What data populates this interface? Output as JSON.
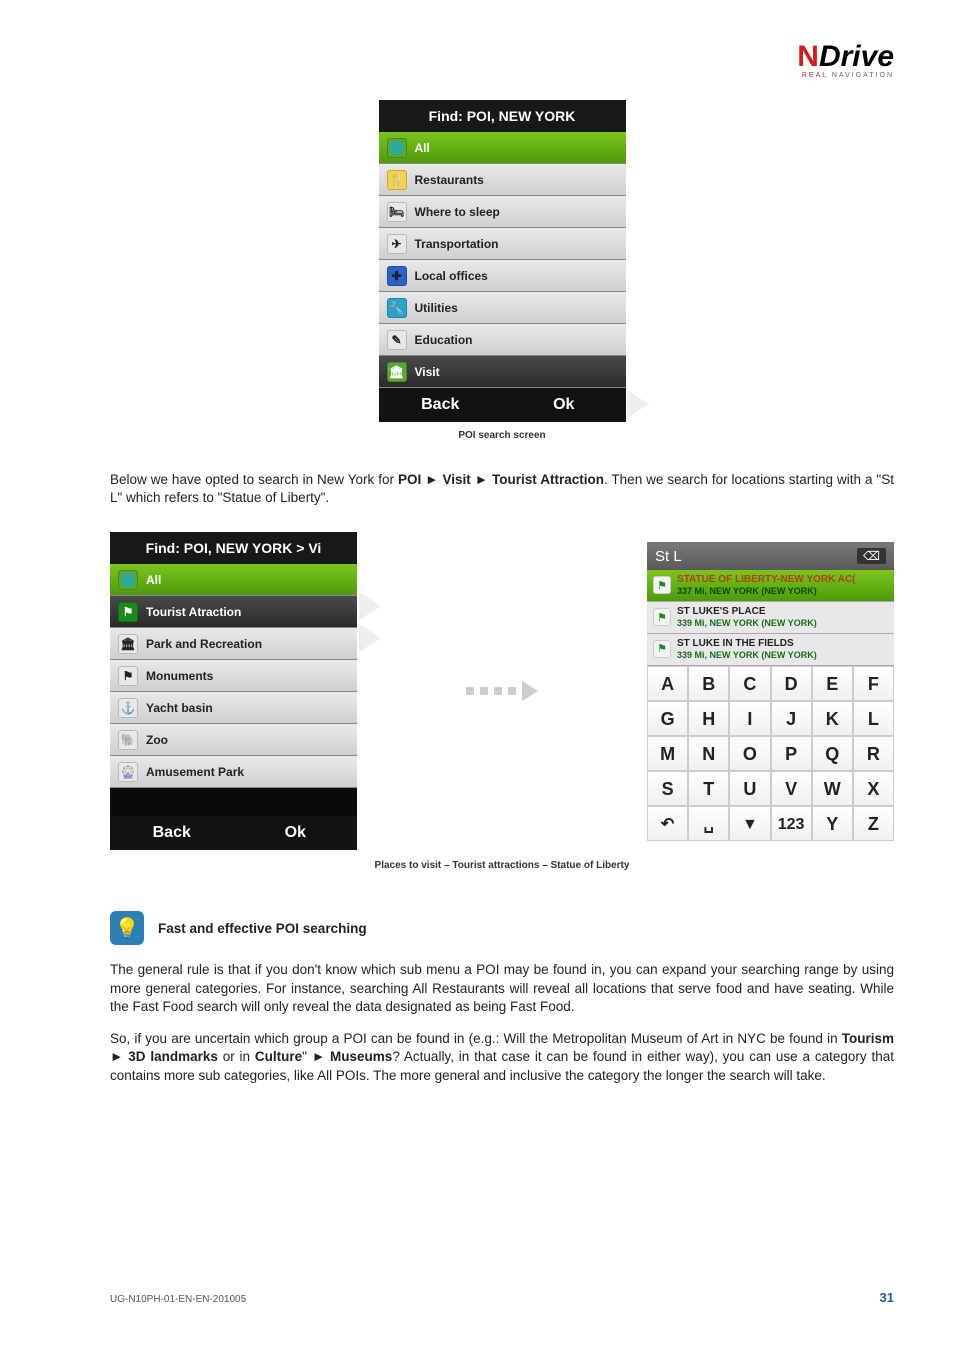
{
  "logo": {
    "part1": "N",
    "part2": "Drive",
    "sub1": "REAL",
    "sub2": "NAVIGATION"
  },
  "screen1": {
    "title": "Find: POI, NEW YORK",
    "items": [
      {
        "label": "All",
        "selected": true,
        "icon_bg": "#5aa832",
        "icon_glyph": "🌐"
      },
      {
        "label": "Restaurants",
        "icon_bg": "#f5d24a",
        "icon_glyph": "🍴"
      },
      {
        "label": "Where to sleep",
        "icon_bg": "#e8e8e8",
        "icon_glyph": "🛏"
      },
      {
        "label": "Transportation",
        "icon_bg": "#e8e8e8",
        "icon_glyph": "✈"
      },
      {
        "label": "Local offices",
        "icon_bg": "#2a62c9",
        "icon_glyph": "✚"
      },
      {
        "label": "Utilities",
        "icon_bg": "#2aa5c9",
        "icon_glyph": "🔧"
      },
      {
        "label": "Education",
        "icon_bg": "#e8e8e8",
        "icon_glyph": "✎"
      },
      {
        "label": "Visit",
        "dark": true,
        "icon_bg": "#5aa832",
        "icon_glyph": "🏛"
      }
    ],
    "back": "Back",
    "ok": "Ok",
    "caption": "POI search screen"
  },
  "para1": {
    "pre": "Below we have opted to search in New York for ",
    "b1": "POI ► Visit ► Tourist Attraction",
    "post": ". Then we search for locations starting with a \"St L\" which refers to \"Statue of Liberty\"."
  },
  "screen2": {
    "title": "Find: POI, NEW YORK > Vi",
    "items": [
      {
        "label": "All",
        "selected": true,
        "icon_bg": "#5aa832",
        "icon_glyph": "🌐"
      },
      {
        "label": "Tourist Atraction",
        "dark": true,
        "icon_bg": "#1a8a1a",
        "icon_glyph": "⚑"
      },
      {
        "label": "Park and Recreation",
        "icon_bg": "#e8e8e8",
        "icon_glyph": "🏛"
      },
      {
        "label": "Monuments",
        "icon_bg": "#e8e8e8",
        "icon_glyph": "⚑"
      },
      {
        "label": "Yacht basin",
        "icon_bg": "#e8e8e8",
        "icon_glyph": "⚓"
      },
      {
        "label": "Zoo",
        "icon_bg": "#e8e8e8",
        "icon_glyph": "🐘"
      },
      {
        "label": "Amusement Park",
        "icon_bg": "#e8e8e8",
        "icon_glyph": "🎡"
      }
    ],
    "back": "Back",
    "ok": "Ok"
  },
  "screen3": {
    "query": "St L",
    "del": "⌫",
    "results": [
      {
        "t1": "STATUE OF LIBERTY-NEW YORK AC(",
        "t2": "337 Mi, NEW YORK (NEW YORK)",
        "sel": true
      },
      {
        "t1": "ST LUKE'S PLACE",
        "t2": "339 Mi, NEW YORK (NEW YORK)"
      },
      {
        "t1": "ST LUKE IN THE FIELDS",
        "t2": "339 Mi, NEW YORK (NEW YORK)"
      }
    ],
    "keys": [
      "A",
      "B",
      "C",
      "D",
      "E",
      "F",
      "G",
      "H",
      "I",
      "J",
      "K",
      "L",
      "M",
      "N",
      "O",
      "P",
      "Q",
      "R",
      "S",
      "T",
      "U",
      "V",
      "W",
      "X",
      "↶",
      "␣",
      "▼",
      "123",
      "Y",
      "Z"
    ]
  },
  "caption2": "Places to visit – Tourist attractions – Statue of Liberty",
  "tip": {
    "title": "Fast and effective POI searching"
  },
  "para2": "The general rule is that if you don't know which sub menu a POI may be found in, you can expand your searching range by using more general categories. For instance, searching All Restaurants will reveal all locations that serve food and have seating. While the Fast Food search will only reveal the data designated as being Fast Food.",
  "para3": {
    "pre": "So, if you are uncertain which group a POI can be found in (e.g.: Will the Metropolitan Museum of Art in NYC be found in ",
    "b1": "Tourism ► 3D landmarks",
    "mid1": " or in ",
    "b2": "Culture",
    "mid2": "\" ► ",
    "b3": "Museums",
    "post": "? Actually, in that case it can be found in either way), you can use a category that contains more sub categories, like All POIs. The more general and inclusive the category the longer the search will take."
  },
  "footer": {
    "doc": "UG-N10PH-01-EN-EN-201005",
    "page": "31"
  }
}
